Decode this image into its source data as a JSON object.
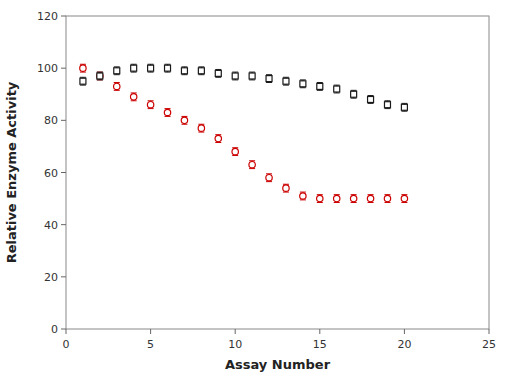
{
  "chart_data": {
    "type": "scatter",
    "xlabel": "Assay Number",
    "ylabel": "Relative Enzyme Activity",
    "xlim": [
      0,
      25
    ],
    "ylim": [
      0,
      120
    ],
    "xticks": [
      0,
      5,
      10,
      15,
      20,
      25
    ],
    "yticks": [
      0,
      20,
      40,
      60,
      80,
      100,
      120
    ],
    "grid": false,
    "series": [
      {
        "color": "#1a1a1a",
        "marker": "square",
        "x": [
          1,
          2,
          3,
          4,
          5,
          6,
          7,
          8,
          9,
          10,
          11,
          12,
          13,
          14,
          15,
          16,
          17,
          18,
          19,
          20
        ],
        "values": [
          95,
          97,
          99,
          100,
          100,
          100,
          99,
          99,
          98,
          97,
          97,
          96,
          95,
          94,
          93,
          92,
          90,
          88,
          86,
          85
        ],
        "errors": [
          1.5,
          1.5,
          1.5,
          1.5,
          1.5,
          1.5,
          1.5,
          1.5,
          1.5,
          1.5,
          1.5,
          1.5,
          1.5,
          1.5,
          1.5,
          1.5,
          1.5,
          1.5,
          1.5,
          1.5
        ]
      },
      {
        "color": "#cc0000",
        "marker": "circle",
        "x": [
          1,
          2,
          3,
          4,
          5,
          6,
          7,
          8,
          9,
          10,
          11,
          12,
          13,
          14,
          15,
          16,
          17,
          18,
          19,
          20
        ],
        "values": [
          100,
          97,
          93,
          89,
          86,
          83,
          80,
          77,
          73,
          68,
          63,
          58,
          54,
          51,
          50,
          50,
          50,
          50,
          50,
          50
        ],
        "errors": [
          1.5,
          1.5,
          1.5,
          1.5,
          1.5,
          1.5,
          1.5,
          1.5,
          1.5,
          1.5,
          1.5,
          1.5,
          1.5,
          1.5,
          1.5,
          1.5,
          1.5,
          1.5,
          1.5,
          1.5
        ]
      }
    ]
  }
}
